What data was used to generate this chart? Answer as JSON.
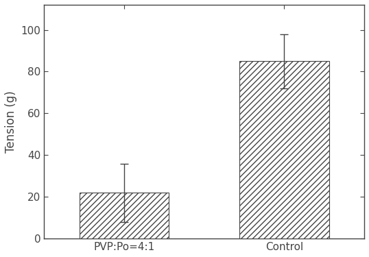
{
  "categories": [
    "PVP:Po=4:1",
    "Control"
  ],
  "values": [
    22,
    85
  ],
  "errors_upper": [
    14,
    13
  ],
  "errors_lower": [
    14,
    13
  ],
  "bar_color": "white",
  "bar_edgecolor": "#444444",
  "hatch": "////",
  "ylabel": "Tension (g)",
  "ylim": [
    0,
    112
  ],
  "yticks": [
    0,
    20,
    40,
    60,
    80,
    100
  ],
  "bar_width": 0.28,
  "capsize": 4,
  "error_color": "#444444",
  "background_color": "#ffffff",
  "spine_color": "#444444",
  "tick_color": "#444444",
  "label_fontsize": 12,
  "tick_fontsize": 11,
  "x_positions": [
    0.25,
    0.75
  ]
}
